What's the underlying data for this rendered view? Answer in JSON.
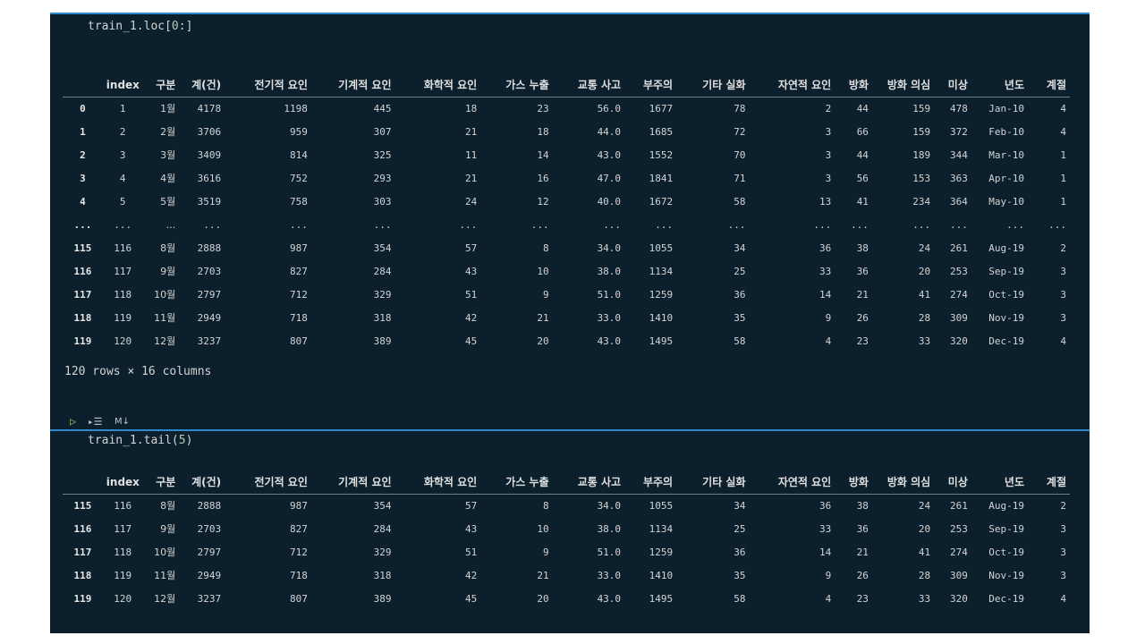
{
  "cells": {
    "loc": {
      "code_prefix": "train_1.loc[",
      "code_num": "0",
      "code_suffix": ":]"
    },
    "tail": {
      "code_prefix": "train_1.tail(",
      "code_num": "5",
      "code_suffix": ")"
    },
    "markdown_label": "M↓"
  },
  "table": {
    "columns": [
      "",
      "index",
      "구분",
      "계(건)",
      "전기적 요인",
      "기계적 요인",
      "화학적 요인",
      "가스 누출",
      "교통 사고",
      "부주의",
      "기타 실화",
      "자연적 요인",
      "방화",
      "방화 의심",
      "미상",
      "년도",
      "계절"
    ],
    "rows_loc": [
      [
        "0",
        "1",
        "1월",
        "4178",
        "1198",
        "445",
        "18",
        "23",
        "56.0",
        "1677",
        "78",
        "2",
        "44",
        "159",
        "478",
        "Jan-10",
        "4"
      ],
      [
        "1",
        "2",
        "2월",
        "3706",
        "959",
        "307",
        "21",
        "18",
        "44.0",
        "1685",
        "72",
        "3",
        "66",
        "159",
        "372",
        "Feb-10",
        "4"
      ],
      [
        "2",
        "3",
        "3월",
        "3409",
        "814",
        "325",
        "11",
        "14",
        "43.0",
        "1552",
        "70",
        "3",
        "44",
        "189",
        "344",
        "Mar-10",
        "1"
      ],
      [
        "3",
        "4",
        "4월",
        "3616",
        "752",
        "293",
        "21",
        "16",
        "47.0",
        "1841",
        "71",
        "3",
        "56",
        "153",
        "363",
        "Apr-10",
        "1"
      ],
      [
        "4",
        "5",
        "5월",
        "3519",
        "758",
        "303",
        "24",
        "12",
        "40.0",
        "1672",
        "58",
        "13",
        "41",
        "234",
        "364",
        "May-10",
        "1"
      ],
      [
        "...",
        "...",
        "...",
        "...",
        "...",
        "...",
        "...",
        "...",
        "...",
        "...",
        "...",
        "...",
        "...",
        "...",
        "...",
        "...",
        "..."
      ],
      [
        "115",
        "116",
        "8월",
        "2888",
        "987",
        "354",
        "57",
        "8",
        "34.0",
        "1055",
        "34",
        "36",
        "38",
        "24",
        "261",
        "Aug-19",
        "2"
      ],
      [
        "116",
        "117",
        "9월",
        "2703",
        "827",
        "284",
        "43",
        "10",
        "38.0",
        "1134",
        "25",
        "33",
        "36",
        "20",
        "253",
        "Sep-19",
        "3"
      ],
      [
        "117",
        "118",
        "10월",
        "2797",
        "712",
        "329",
        "51",
        "9",
        "51.0",
        "1259",
        "36",
        "14",
        "21",
        "41",
        "274",
        "Oct-19",
        "3"
      ],
      [
        "118",
        "119",
        "11월",
        "2949",
        "718",
        "318",
        "42",
        "21",
        "33.0",
        "1410",
        "35",
        "9",
        "26",
        "28",
        "309",
        "Nov-19",
        "3"
      ],
      [
        "119",
        "120",
        "12월",
        "3237",
        "807",
        "389",
        "45",
        "20",
        "43.0",
        "1495",
        "58",
        "4",
        "23",
        "33",
        "320",
        "Dec-19",
        "4"
      ]
    ],
    "rows_tail": [
      [
        "115",
        "116",
        "8월",
        "2888",
        "987",
        "354",
        "57",
        "8",
        "34.0",
        "1055",
        "34",
        "36",
        "38",
        "24",
        "261",
        "Aug-19",
        "2"
      ],
      [
        "116",
        "117",
        "9월",
        "2703",
        "827",
        "284",
        "43",
        "10",
        "38.0",
        "1134",
        "25",
        "33",
        "36",
        "20",
        "253",
        "Sep-19",
        "3"
      ],
      [
        "117",
        "118",
        "10월",
        "2797",
        "712",
        "329",
        "51",
        "9",
        "51.0",
        "1259",
        "36",
        "14",
        "21",
        "41",
        "274",
        "Oct-19",
        "3"
      ],
      [
        "118",
        "119",
        "11월",
        "2949",
        "718",
        "318",
        "42",
        "21",
        "33.0",
        "1410",
        "35",
        "9",
        "26",
        "28",
        "309",
        "Nov-19",
        "3"
      ],
      [
        "119",
        "120",
        "12월",
        "3237",
        "807",
        "389",
        "45",
        "20",
        "43.0",
        "1495",
        "58",
        "4",
        "23",
        "33",
        "320",
        "Dec-19",
        "4"
      ]
    ],
    "shape_text": "120 rows × 16 columns"
  },
  "colors": {
    "background": "#0b1f2c",
    "accent": "#2f8ad0",
    "run": "#89d185"
  },
  "icons": {
    "run": "play-icon",
    "run_by_line": "run-by-line-icon"
  }
}
